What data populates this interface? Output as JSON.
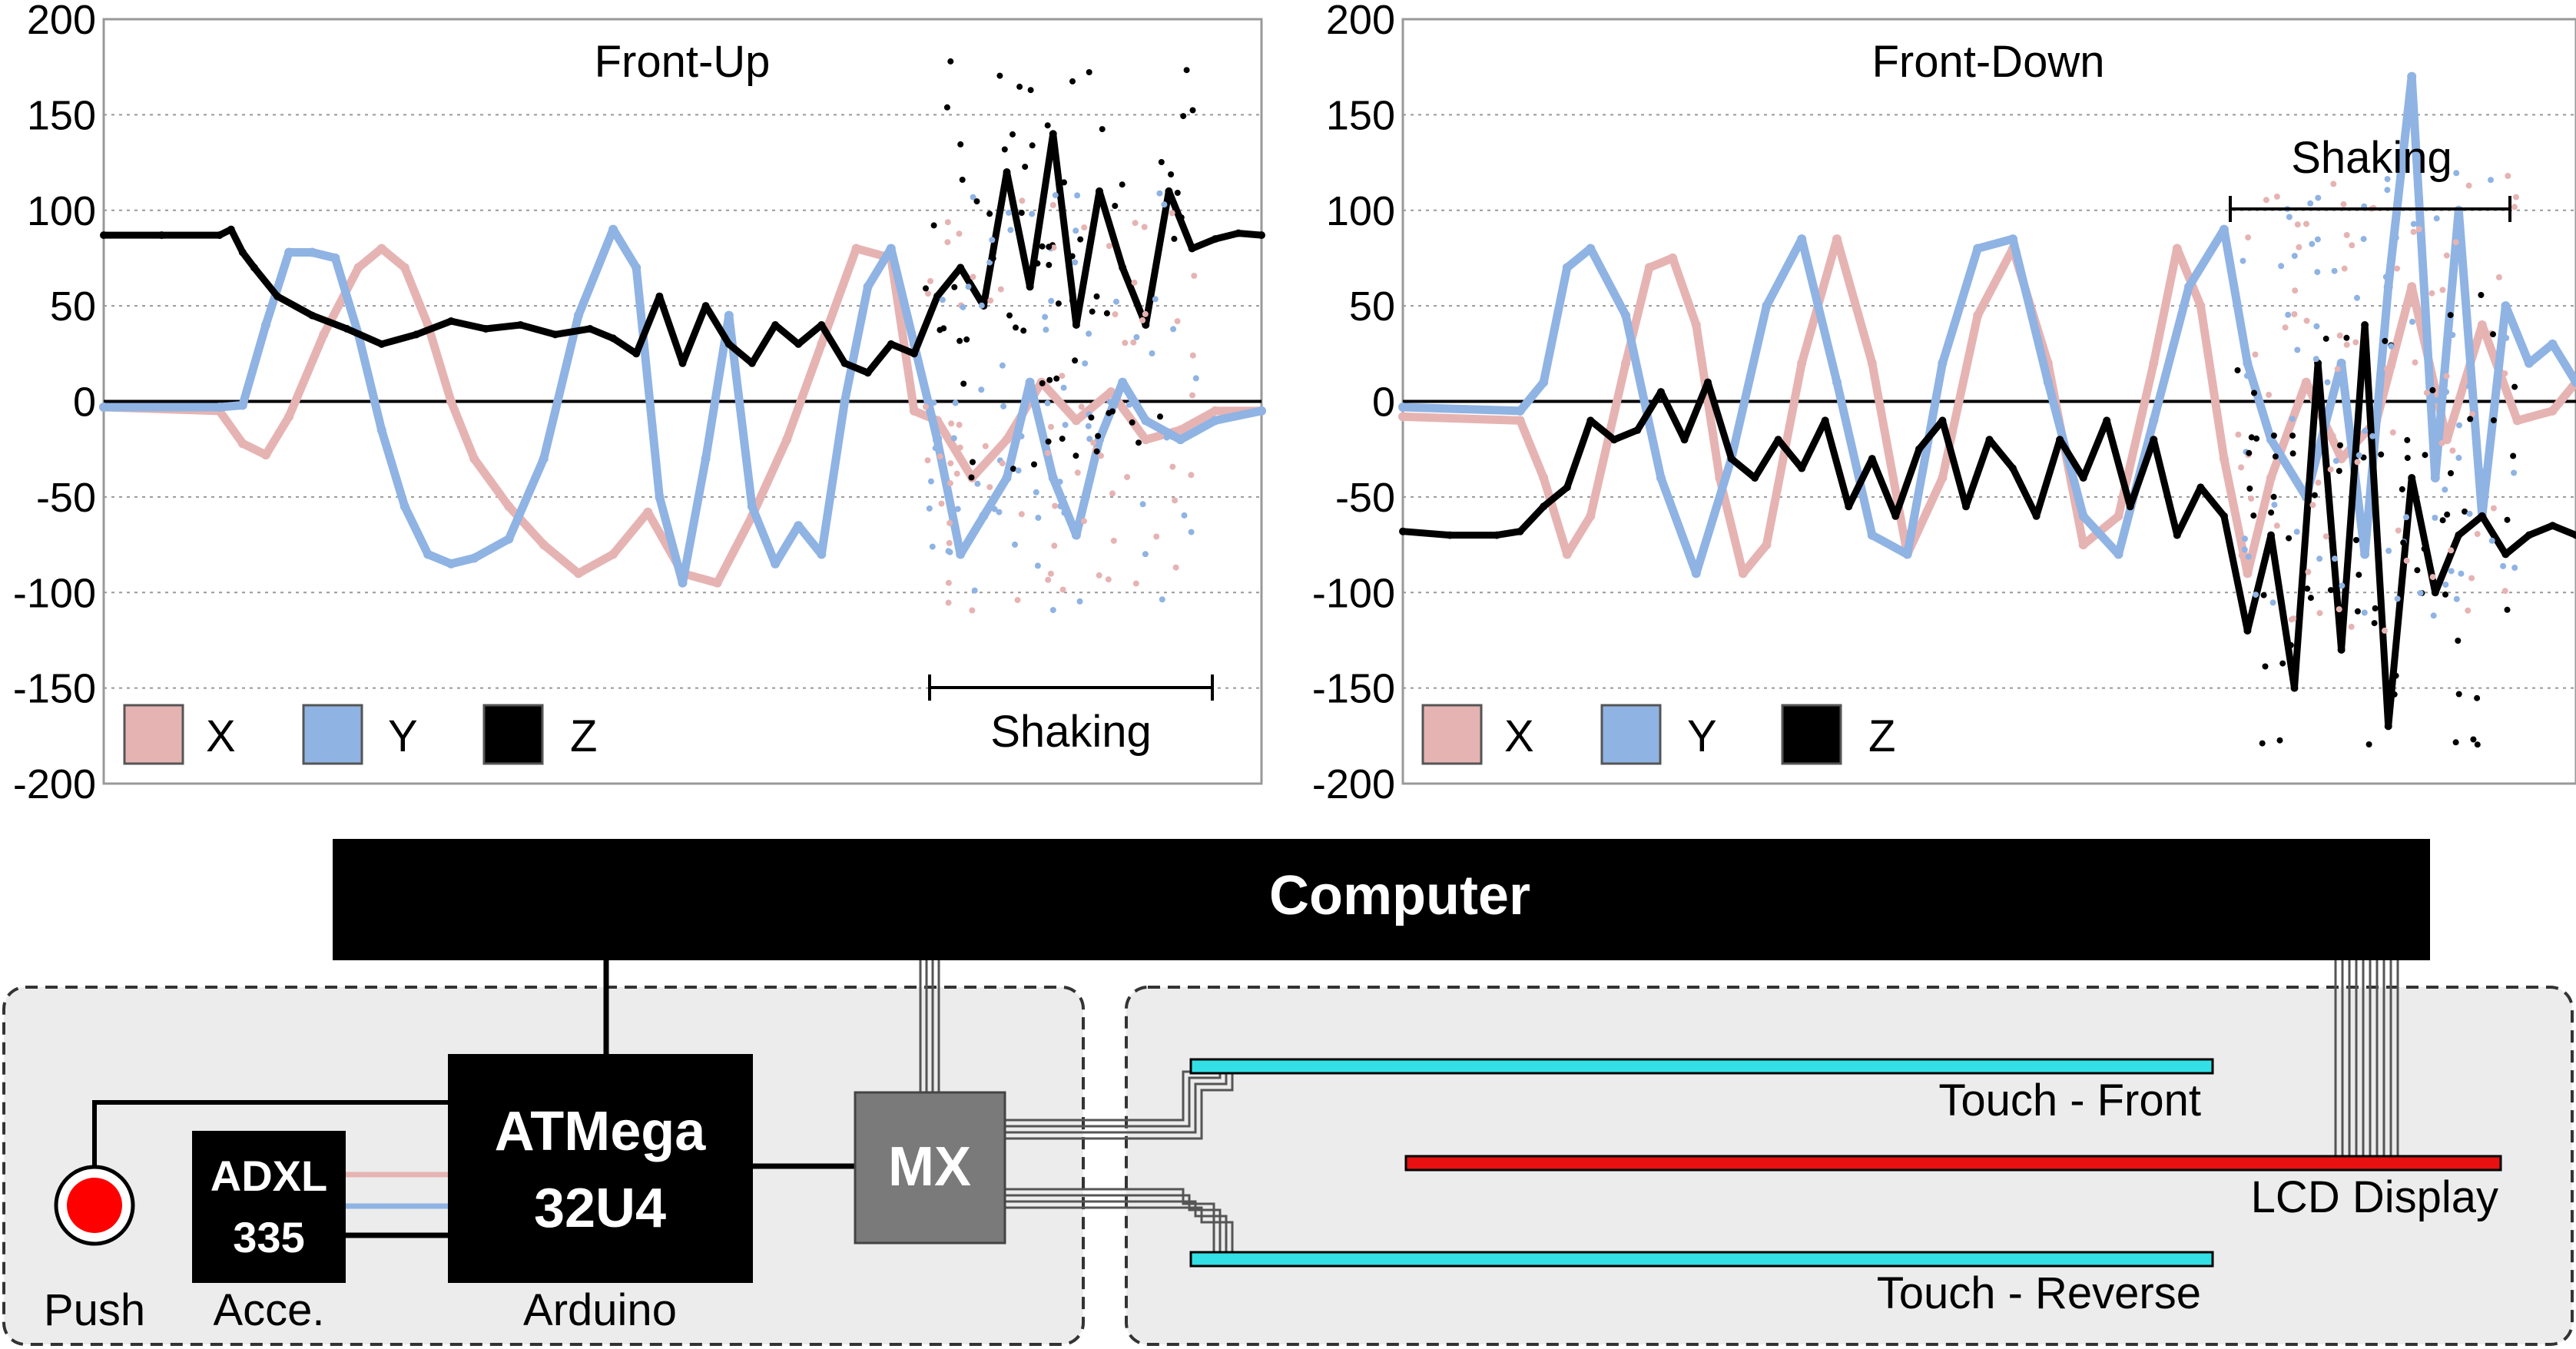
{
  "chart_data": [
    {
      "type": "scatter",
      "title": "Front-Up",
      "xlabel": "",
      "ylabel": "",
      "ylim": [
        -200,
        200
      ],
      "yticks": [
        200,
        150,
        100,
        50,
        0,
        -50,
        -100,
        -150,
        -200
      ],
      "grid": true,
      "legend_position": "bottom-left",
      "annotation": "Shaking",
      "x_range": [
        0,
        100
      ],
      "shaking_range": [
        71,
        95
      ],
      "series": [
        {
          "name": "X",
          "color": "#e6b3b3",
          "x": [
            0,
            10,
            12,
            14,
            16,
            19,
            22,
            24,
            26,
            28,
            30,
            32,
            35,
            38,
            41,
            44,
            47,
            50,
            53,
            56,
            59,
            62,
            65,
            68,
            70,
            72,
            75,
            78,
            81,
            84,
            87,
            90,
            93,
            96,
            100
          ],
          "y": [
            -3,
            -5,
            -22,
            -28,
            -8,
            35,
            70,
            80,
            70,
            40,
            0,
            -30,
            -55,
            -75,
            -90,
            -80,
            -58,
            -90,
            -95,
            -60,
            -20,
            30,
            80,
            75,
            -5,
            -10,
            -40,
            -20,
            10,
            -10,
            5,
            -20,
            -15,
            -5,
            -5
          ]
        },
        {
          "name": "Y",
          "color": "#8fb3e3",
          "x": [
            0,
            10,
            12,
            14,
            16,
            18,
            20,
            22,
            24,
            26,
            28,
            30,
            32,
            35,
            38,
            41,
            44,
            46,
            48,
            50,
            52,
            54,
            56,
            58,
            60,
            62,
            64,
            66,
            68,
            70,
            72,
            74,
            76,
            78,
            80,
            82,
            84,
            86,
            88,
            90,
            93,
            96,
            100
          ],
          "y": [
            -3,
            -3,
            -2,
            40,
            78,
            78,
            75,
            35,
            -15,
            -55,
            -80,
            -85,
            -82,
            -72,
            -30,
            45,
            90,
            70,
            -50,
            -95,
            -30,
            45,
            -55,
            -85,
            -65,
            -80,
            0,
            60,
            80,
            30,
            -20,
            -80,
            -60,
            -40,
            10,
            -40,
            -70,
            -20,
            10,
            -10,
            -20,
            -10,
            -5
          ]
        },
        {
          "name": "Z",
          "color": "#000000",
          "x": [
            0,
            5,
            10,
            11,
            12,
            13,
            15,
            18,
            21,
            24,
            27,
            30,
            33,
            36,
            39,
            42,
            44,
            46,
            48,
            50,
            52,
            54,
            56,
            58,
            60,
            62,
            64,
            66,
            68,
            70,
            72,
            74,
            76,
            78,
            80,
            82,
            84,
            86,
            88,
            90,
            92,
            94,
            96,
            98,
            100
          ],
          "y": [
            87,
            87,
            87,
            90,
            78,
            70,
            55,
            45,
            38,
            30,
            35,
            42,
            38,
            40,
            35,
            38,
            33,
            25,
            55,
            20,
            50,
            30,
            20,
            40,
            30,
            40,
            20,
            15,
            30,
            25,
            55,
            70,
            50,
            120,
            60,
            140,
            40,
            110,
            70,
            40,
            110,
            80,
            85,
            88,
            87
          ]
        }
      ]
    },
    {
      "type": "scatter",
      "title": "Front-Down",
      "xlabel": "",
      "ylabel": "",
      "ylim": [
        -200,
        200
      ],
      "yticks": [
        200,
        150,
        100,
        50,
        0,
        -50,
        -100,
        -150,
        -200
      ],
      "grid": true,
      "legend_position": "bottom-left",
      "annotation": "Shaking",
      "x_range": [
        0,
        100
      ],
      "shaking_range": [
        71,
        95
      ],
      "series": [
        {
          "name": "X",
          "color": "#e6b3b3",
          "x": [
            0,
            10,
            12,
            14,
            16,
            19,
            21,
            23,
            25,
            27,
            29,
            31,
            34,
            37,
            40,
            43,
            46,
            49,
            52,
            55,
            58,
            61,
            64,
            66,
            68,
            70,
            72,
            74,
            77,
            80,
            83,
            86,
            89,
            92,
            95,
            98,
            100
          ],
          "y": [
            -8,
            -10,
            -40,
            -80,
            -60,
            20,
            70,
            75,
            40,
            -40,
            -90,
            -75,
            20,
            85,
            20,
            -80,
            -40,
            45,
            80,
            20,
            -75,
            -60,
            20,
            80,
            50,
            -30,
            -90,
            -40,
            10,
            -30,
            -10,
            60,
            -20,
            40,
            -10,
            -5,
            10
          ]
        },
        {
          "name": "Y",
          "color": "#8fb3e3",
          "x": [
            0,
            10,
            12,
            14,
            16,
            19,
            22,
            25,
            28,
            31,
            34,
            37,
            40,
            43,
            46,
            49,
            52,
            55,
            58,
            61,
            64,
            67,
            70,
            72,
            74,
            77,
            80,
            82,
            84,
            86,
            88,
            90,
            92,
            94,
            96,
            98,
            100
          ],
          "y": [
            -3,
            -5,
            10,
            70,
            80,
            45,
            -40,
            -90,
            -30,
            50,
            85,
            10,
            -70,
            -80,
            20,
            80,
            85,
            10,
            -60,
            -80,
            -10,
            60,
            90,
            20,
            -20,
            -50,
            20,
            -80,
            60,
            170,
            -40,
            100,
            -60,
            50,
            20,
            30,
            10
          ]
        },
        {
          "name": "Z",
          "color": "#000000",
          "x": [
            0,
            4,
            8,
            10,
            12,
            14,
            16,
            18,
            20,
            22,
            24,
            26,
            28,
            30,
            32,
            34,
            36,
            38,
            40,
            42,
            44,
            46,
            48,
            50,
            52,
            54,
            56,
            58,
            60,
            62,
            64,
            66,
            68,
            70,
            72,
            74,
            76,
            78,
            80,
            82,
            84,
            86,
            88,
            90,
            92,
            94,
            96,
            98,
            100
          ],
          "y": [
            -68,
            -70,
            -70,
            -68,
            -55,
            -45,
            -10,
            -20,
            -15,
            5,
            -20,
            10,
            -30,
            -40,
            -20,
            -35,
            -10,
            -55,
            -30,
            -60,
            -25,
            -10,
            -55,
            -20,
            -35,
            -60,
            -20,
            -40,
            -10,
            -55,
            -20,
            -70,
            -45,
            -60,
            -120,
            -70,
            -150,
            20,
            -130,
            40,
            -170,
            -40,
            -100,
            -70,
            -60,
            -80,
            -70,
            -65,
            -70
          ]
        }
      ]
    }
  ],
  "diagram": {
    "computer_label": "Computer",
    "push_label": "Push",
    "adxl_label_line1": "ADXL",
    "adxl_label_line2": "335",
    "acce_label": "Acce.",
    "atmega_label_line1": "ATMega",
    "atmega_label_line2": "32U4",
    "arduino_label": "Arduino",
    "mx_label": "MX",
    "touch_front_label": "Touch - Front",
    "lcd_label": "LCD Display",
    "touch_reverse_label": "Touch - Reverse",
    "colors": {
      "computer": "#000000",
      "panel_bg": "#ececec",
      "mx": "#7a7a7a",
      "touch_bar": "#33e0e6",
      "lcd_bar": "#e81010",
      "push_button": "#ff0000",
      "adxl_red_wire": "#e6b3b3",
      "adxl_blue_wire": "#8fb3e3"
    },
    "icons": [
      "push-button-icon"
    ]
  }
}
